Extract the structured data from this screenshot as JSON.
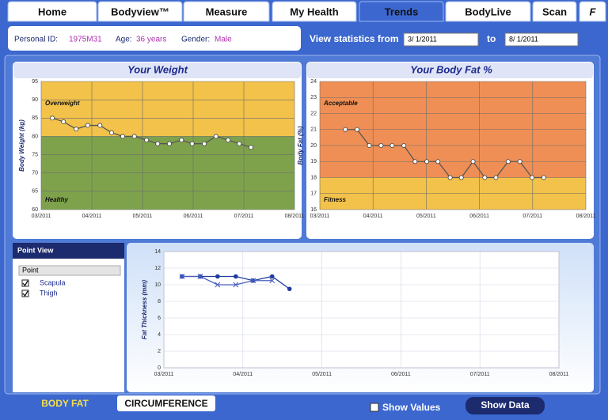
{
  "tabs": [
    "Home",
    "Bodyview™",
    "Measure",
    "My Health",
    "Trends",
    "BodyLive",
    "Scan",
    "F"
  ],
  "active_tab": 4,
  "profile": {
    "id_label": "Personal ID:",
    "id": "1975M31",
    "age_label": "Age:",
    "age": "36 years",
    "gender_label": "Gender:",
    "gender": "Male"
  },
  "range": {
    "label": "View statistics from",
    "from": "3/ 1/2011",
    "to_label": "to",
    "to": "8/ 1/2011"
  },
  "chart_data": [
    {
      "type": "line",
      "title": "Your Weight",
      "ylabel": "Body Weight (kg)",
      "xlim": [
        0,
        5
      ],
      "xticks": [
        {
          "value": 0,
          "label": "03/2011"
        },
        {
          "value": 1,
          "label": "04/2011"
        },
        {
          "value": 2,
          "label": "05/2011"
        },
        {
          "value": 3,
          "label": "06/2011"
        },
        {
          "value": 4,
          "label": "07/2011"
        },
        {
          "value": 5,
          "label": "08/2011"
        }
      ],
      "ylim": [
        60,
        95
      ],
      "yticks": [
        60,
        65,
        70,
        75,
        80,
        85,
        90,
        95
      ],
      "grid": true,
      "bands": [
        {
          "label": "Overweight",
          "from": 80,
          "to": 95,
          "color": "#f2c24a"
        },
        {
          "label": "Healthy",
          "from": 60,
          "to": 80,
          "color": "#7ea24c"
        }
      ],
      "color": "#555555",
      "x": [
        0.22,
        0.44,
        0.69,
        0.92,
        1.16,
        1.39,
        1.61,
        1.84,
        2.08,
        2.3,
        2.53,
        2.77,
        2.98,
        3.22,
        3.45,
        3.69,
        3.91,
        4.14
      ],
      "values": [
        85,
        84,
        82,
        83,
        83,
        81,
        80,
        80,
        79,
        78,
        78,
        79,
        78,
        78,
        80,
        79,
        78,
        77
      ]
    },
    {
      "type": "line",
      "title": "Your Body Fat %",
      "ylabel": "Body Fat (%)",
      "xlim": [
        0,
        5
      ],
      "xticks": [
        {
          "value": 0,
          "label": "03/2011"
        },
        {
          "value": 1,
          "label": "04/2011"
        },
        {
          "value": 2,
          "label": "05/2011"
        },
        {
          "value": 3,
          "label": "06/2011"
        },
        {
          "value": 4,
          "label": "07/2011"
        },
        {
          "value": 5,
          "label": "08/2011"
        }
      ],
      "ylim": [
        16,
        24
      ],
      "yticks": [
        16,
        17,
        18,
        19,
        20,
        21,
        22,
        23,
        24
      ],
      "grid": true,
      "bands": [
        {
          "label": "Acceptable",
          "from": 18,
          "to": 24,
          "color": "#ef8f55"
        },
        {
          "label": "Fitness",
          "from": 16,
          "to": 18,
          "color": "#f2c24a"
        }
      ],
      "color": "#555555",
      "x": [
        0.48,
        0.7,
        0.93,
        1.15,
        1.36,
        1.58,
        1.79,
        2.01,
        2.22,
        2.45,
        2.66,
        2.88,
        3.1,
        3.31,
        3.54,
        3.76,
        3.99,
        4.21
      ],
      "values": [
        21,
        21,
        20,
        20,
        20,
        20,
        19,
        19,
        19,
        18,
        18,
        19,
        18,
        18,
        19,
        19,
        18,
        18
      ]
    },
    {
      "type": "line",
      "ylabel": "Fat Thickness (mm)",
      "xlim": [
        0,
        5
      ],
      "xticks": [
        {
          "value": 0,
          "label": "03/2011"
        },
        {
          "value": 1,
          "label": "04/2011"
        },
        {
          "value": 2,
          "label": "05/2011"
        },
        {
          "value": 3,
          "label": "06/2011"
        },
        {
          "value": 4,
          "label": "07/2011"
        },
        {
          "value": 5,
          "label": "08/2011"
        }
      ],
      "ylim": [
        0,
        14
      ],
      "yticks": [
        0,
        2,
        4,
        6,
        8,
        10,
        12,
        14
      ],
      "grid": true,
      "series": [
        {
          "name": "Scapula",
          "color": "#1f3a9e",
          "marker": "dot",
          "x": [
            0.23,
            0.46,
            0.68,
            0.91,
            1.13,
            1.37,
            1.59
          ],
          "values": [
            11,
            11,
            11,
            11,
            10.5,
            11,
            9.5
          ]
        },
        {
          "name": "Thigh",
          "color": "#4a5fc0",
          "marker": "x",
          "x": [
            0.23,
            0.46,
            0.68,
            0.91,
            1.13,
            1.37
          ],
          "values": [
            11,
            11,
            10,
            10,
            10.5,
            10.5
          ]
        }
      ]
    }
  ],
  "point_view": {
    "title": "Point View",
    "column": "Point"
  },
  "bottom": {
    "tabs": [
      "BODY FAT",
      "CIRCUMFERENCE"
    ],
    "show_values": "Show Values",
    "show_data": "Show Data"
  }
}
